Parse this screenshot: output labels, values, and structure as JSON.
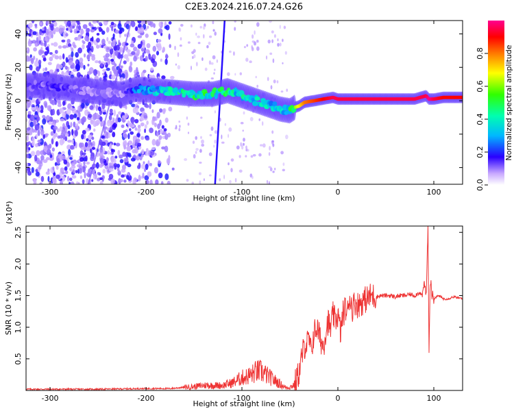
{
  "title": "C2E3.2024.216.07.24.G26",
  "chart_data": [
    {
      "type": "heatmap",
      "xlabel": "Height of straight line (km)",
      "ylabel": "Frequency (Hz)",
      "xlim": [
        -325,
        130
      ],
      "ylim": [
        -50,
        48
      ],
      "xticks": [
        -300,
        -200,
        -100,
        0,
        100
      ],
      "yticks": [
        -40,
        -20,
        0,
        20,
        40
      ],
      "colorbar": {
        "label": "Normalized spectral amplitude",
        "range": [
          0,
          1
        ],
        "ticks": [
          0.0,
          0.2,
          0.4,
          0.6,
          0.8
        ]
      },
      "ridge": {
        "x": [
          -305,
          -290,
          -275,
          -260,
          -245,
          -225,
          -210,
          -190,
          -170,
          -150,
          -130,
          -115,
          -100,
          -90,
          -80,
          -70,
          -60,
          -50,
          -45,
          -40,
          -35,
          -25,
          -15,
          -5,
          0,
          20,
          40,
          60,
          80,
          92,
          95,
          100,
          110,
          130
        ],
        "y": [
          9,
          8,
          7,
          6,
          5,
          4,
          7,
          6,
          5,
          4,
          4,
          6,
          3,
          1,
          -1,
          -3,
          -5,
          -6,
          -4,
          -3,
          -1,
          0,
          1,
          2,
          1,
          1,
          1,
          1,
          1,
          3,
          1,
          1,
          2,
          2
        ],
        "amplitude": [
          0.15,
          0.18,
          0.15,
          0.1,
          0.12,
          0.1,
          0.3,
          0.4,
          0.45,
          0.5,
          0.55,
          0.5,
          0.45,
          0.45,
          0.4,
          0.4,
          0.45,
          0.5,
          0.6,
          0.7,
          0.8,
          0.85,
          0.9,
          0.95,
          0.95,
          0.95,
          0.95,
          0.95,
          0.95,
          0.95,
          1.0,
          0.95,
          0.9,
          0.9
        ]
      }
    },
    {
      "type": "line",
      "xlabel": "Height of straight line (km)",
      "ylabel": "SNR (10 * v/v)",
      "multiplier": "(x10⁴)",
      "xlim": [
        -325,
        130
      ],
      "ylim": [
        0,
        2.6
      ],
      "xticks": [
        -300,
        -200,
        -100,
        0,
        100
      ],
      "yticks": [
        0.5,
        1.0,
        1.5,
        2.0,
        2.5
      ],
      "color": "#ee3333",
      "series": [
        {
          "x": [
            -325,
            -300,
            -250,
            -200,
            -175,
            -160,
            -150,
            -140,
            -130,
            -120,
            -110,
            -100,
            -95,
            -90,
            -85,
            -80,
            -75,
            -70,
            -65,
            -60,
            -55,
            -50,
            -45,
            -40,
            -38,
            -35,
            -32,
            -30,
            -28,
            -25,
            -22,
            -20,
            -18,
            -15,
            -12,
            -10,
            -8,
            -5,
            -3,
            0,
            3,
            5,
            8,
            10,
            12,
            15,
            18,
            20,
            25,
            30,
            35,
            40,
            45,
            50,
            55,
            60,
            65,
            70,
            75,
            80,
            85,
            88,
            90,
            92,
            94,
            95,
            96,
            97,
            98,
            100,
            105,
            110,
            115,
            120,
            130
          ],
          "y": [
            0.02,
            0.02,
            0.02,
            0.03,
            0.03,
            0.05,
            0.06,
            0.08,
            0.08,
            0.08,
            0.12,
            0.2,
            0.22,
            0.25,
            0.3,
            0.3,
            0.25,
            0.2,
            0.15,
            0.1,
            0.05,
            0.05,
            0.1,
            0.3,
            0.5,
            0.7,
            0.75,
            0.8,
            0.6,
            0.9,
            1.0,
            0.9,
            0.8,
            0.7,
            1.0,
            1.1,
            0.95,
            1.2,
            1.1,
            1.2,
            0.9,
            1.2,
            1.3,
            1.2,
            1.5,
            1.3,
            1.4,
            1.35,
            1.4,
            1.45,
            1.5,
            1.48,
            1.5,
            1.5,
            1.5,
            1.48,
            1.5,
            1.5,
            1.52,
            1.5,
            1.55,
            1.5,
            1.7,
            1.5,
            2.6,
            0.5,
            1.6,
            1.8,
            1.5,
            1.45,
            1.5,
            1.45,
            1.45,
            1.48,
            1.45
          ]
        }
      ]
    }
  ]
}
